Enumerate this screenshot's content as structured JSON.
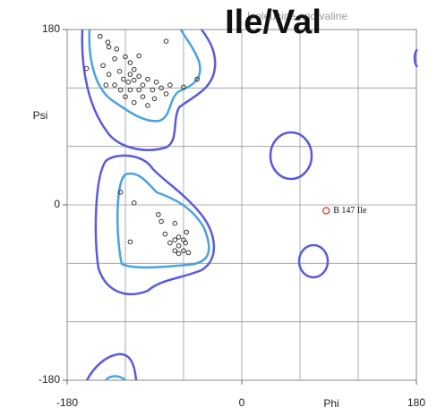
{
  "chart_data": {
    "type": "scatter",
    "title": "Ile/Val",
    "subtitle": "Isoleucine and valine",
    "x_label": "Phi",
    "y_label": "Psi",
    "xlim": [
      -180,
      180
    ],
    "ylim": [
      -180,
      180
    ],
    "xticks": [
      -180,
      0,
      180
    ],
    "yticks": [
      -180,
      0,
      180
    ],
    "grid": [
      -120,
      -60,
      0,
      60,
      120
    ],
    "color": "#333333",
    "x": [
      -146,
      -138,
      -137,
      -129,
      -78,
      -160,
      -143,
      -131,
      -120,
      -115,
      -106,
      -111,
      -126,
      -122,
      -117,
      -111,
      -106,
      -102,
      -97,
      -92,
      -88,
      -83,
      -78,
      -90,
      -102,
      -115,
      -125,
      -131,
      -137,
      -111,
      -97,
      -74,
      -60,
      -46,
      -140,
      -120,
      -106,
      -115,
      -125,
      -111,
      -86,
      -83,
      -69,
      -79,
      -69,
      -65,
      -60,
      -65,
      -60,
      -55,
      -58,
      -74,
      -115,
      -69,
      -57,
      -65
    ],
    "values": [
      173,
      167,
      162,
      160,
      168,
      140,
      143,
      150,
      152,
      146,
      153,
      139,
      137,
      129,
      126,
      128,
      132,
      123,
      129,
      118,
      126,
      120,
      114,
      109,
      111,
      118,
      118,
      123,
      134,
      105,
      102,
      123,
      121,
      129,
      123,
      111,
      118,
      134,
      13,
      2,
      -10,
      -17,
      -19,
      -30,
      -36,
      -33,
      -36,
      -42,
      -47,
      -49,
      -39,
      -39,
      -38,
      -47,
      -28,
      -50
    ],
    "annotation": {
      "label": "B 147 Ile",
      "phi": 87,
      "psi": -6,
      "color": "#e03030"
    }
  }
}
